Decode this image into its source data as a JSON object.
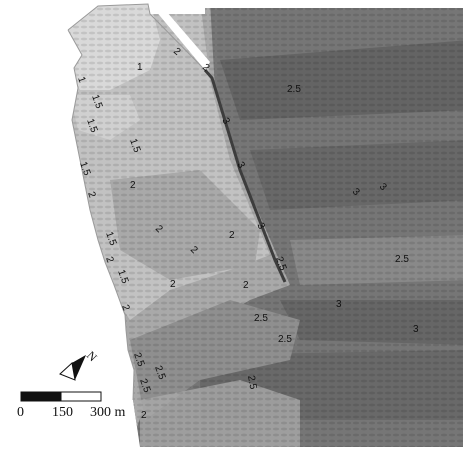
{
  "map": {
    "contour_labels": [
      {
        "id": "c01",
        "text": "2"
      },
      {
        "id": "c02",
        "text": "2"
      },
      {
        "id": "c03",
        "text": "1"
      },
      {
        "id": "c04",
        "text": "1"
      },
      {
        "id": "c05",
        "text": "2.5"
      },
      {
        "id": "c06",
        "text": "1.5"
      },
      {
        "id": "c07",
        "text": "1.5"
      },
      {
        "id": "c08",
        "text": "3"
      },
      {
        "id": "c09",
        "text": "1.5"
      },
      {
        "id": "c10",
        "text": "1.5"
      },
      {
        "id": "c11",
        "text": "3"
      },
      {
        "id": "c12",
        "text": "2"
      },
      {
        "id": "c13",
        "text": "2"
      },
      {
        "id": "c14",
        "text": "3"
      },
      {
        "id": "c15",
        "text": "3"
      },
      {
        "id": "c16",
        "text": "2"
      },
      {
        "id": "c17",
        "text": "3"
      },
      {
        "id": "c18",
        "text": "2"
      },
      {
        "id": "c19",
        "text": "1.5"
      },
      {
        "id": "c20",
        "text": "2"
      },
      {
        "id": "c21",
        "text": "2"
      },
      {
        "id": "c22",
        "text": "2.5"
      },
      {
        "id": "c23",
        "text": "2.5"
      },
      {
        "id": "c24",
        "text": "1.5"
      },
      {
        "id": "c25",
        "text": "2"
      },
      {
        "id": "c26",
        "text": "2"
      },
      {
        "id": "c27",
        "text": "2"
      },
      {
        "id": "c28",
        "text": "3"
      },
      {
        "id": "c29",
        "text": "2.5"
      },
      {
        "id": "c30",
        "text": "3"
      },
      {
        "id": "c31",
        "text": "2.5"
      },
      {
        "id": "c32",
        "text": "2.5"
      },
      {
        "id": "c33",
        "text": "2.5"
      },
      {
        "id": "c34",
        "text": "2.5"
      },
      {
        "id": "c35",
        "text": "2.5"
      },
      {
        "id": "c36",
        "text": "2"
      }
    ],
    "north_arrow": {
      "label": "N"
    },
    "scale_bar": {
      "labels": [
        "0",
        "150",
        "300 m"
      ]
    },
    "colors": {
      "background": "#ffffff",
      "level_1": "#d9d9d9",
      "level_1_5": "#c2c2c2",
      "level_2": "#a9a9a9",
      "level_2_5": "#8f8f8f",
      "level_3": "#767676",
      "level_3_5": "#5f5f5f"
    }
  }
}
